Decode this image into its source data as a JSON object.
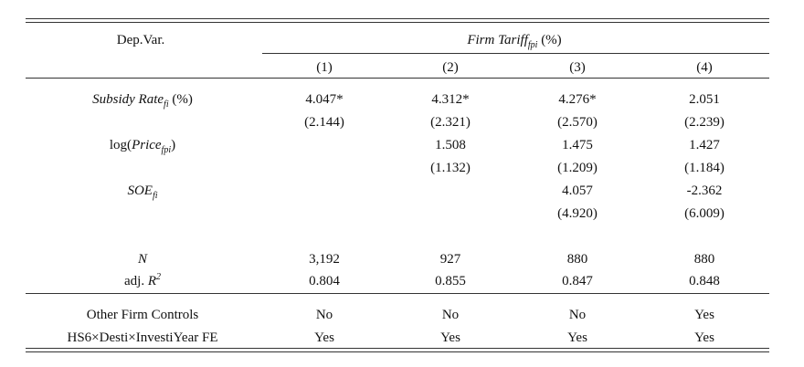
{
  "header": {
    "depvar_label": "Dep.Var.",
    "dependent_variable": {
      "name": "Firm Tariff",
      "subscript": "fpi",
      "unit": "(%)"
    },
    "columns": [
      "(1)",
      "(2)",
      "(3)",
      "(4)"
    ]
  },
  "variables": [
    {
      "name": "Subsidy Rate",
      "subscript": "fi",
      "suffix": " (%)",
      "coefficients": [
        "4.047*",
        "4.312*",
        "4.276*",
        "2.051"
      ],
      "std_errors": [
        "(2.144)",
        "(2.321)",
        "(2.570)",
        "(2.239)"
      ]
    },
    {
      "prefix": "log(",
      "name": "Price",
      "subscript": "fpi",
      "suffix": ")",
      "coefficients": [
        "",
        "1.508",
        "1.475",
        "1.427"
      ],
      "std_errors": [
        "",
        "(1.132)",
        "(1.209)",
        "(1.184)"
      ]
    },
    {
      "name": "SOE",
      "subscript": "fi",
      "coefficients": [
        "",
        "",
        "4.057",
        "-2.362"
      ],
      "std_errors": [
        "",
        "",
        "(4.920)",
        "(6.009)"
      ]
    }
  ],
  "stats": {
    "n_label": "N",
    "n_values": [
      "3,192",
      "927",
      "880",
      "880"
    ],
    "r2_label_prefix": "adj. ",
    "r2_label_symbol": "R",
    "r2_label_sup": "2",
    "r2_values": [
      "0.804",
      "0.855",
      "0.847",
      "0.848"
    ]
  },
  "controls": [
    {
      "label": "Other Firm Controls",
      "values": [
        "No",
        "No",
        "No",
        "Yes"
      ]
    },
    {
      "label": "HS6×Desti×InvestiYear FE",
      "values": [
        "Yes",
        "Yes",
        "Yes",
        "Yes"
      ]
    }
  ]
}
